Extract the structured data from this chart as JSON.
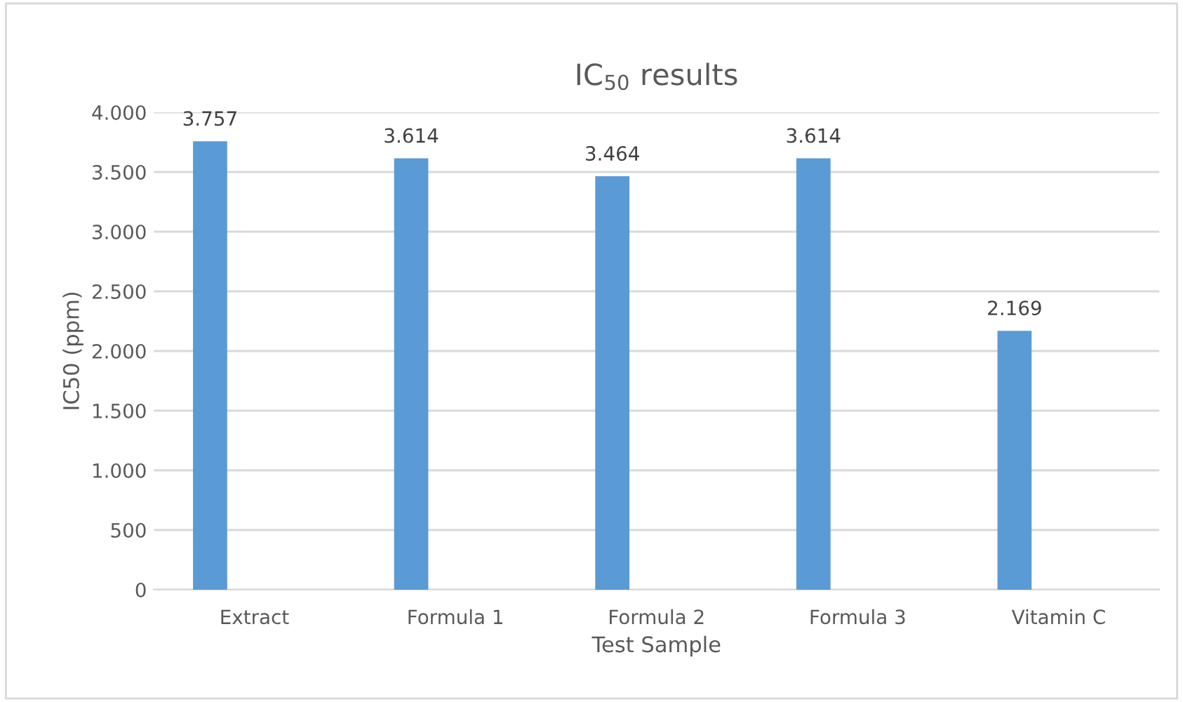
{
  "chart_data": {
    "type": "bar",
    "title": "IC$_{50}$ results",
    "xlabel": "Test Sample",
    "ylabel": "IC50 (ppm)",
    "categories": [
      "Extract",
      "Formula 1",
      "Formula 2",
      "Formula 3",
      "Vitamin C"
    ],
    "values": [
      3757,
      3614,
      3464,
      3614,
      2169
    ],
    "value_labels": [
      "3.757",
      "3.614",
      "3.464",
      "3.614",
      "2.169"
    ],
    "color": "#5b9bd5",
    "ylim": [
      0,
      4000
    ],
    "yticks": [
      {
        "value": 0,
        "label": "0"
      },
      {
        "value": 500,
        "label": "500"
      },
      {
        "value": 1000,
        "label": "1.000"
      },
      {
        "value": 1500,
        "label": "1.500"
      },
      {
        "value": 2000,
        "label": "2.000"
      },
      {
        "value": 2500,
        "label": "2.500"
      },
      {
        "value": 3000,
        "label": "3.000"
      },
      {
        "value": 3500,
        "label": "3.500"
      },
      {
        "value": 4000,
        "label": "4.000"
      }
    ],
    "grid": "y"
  }
}
